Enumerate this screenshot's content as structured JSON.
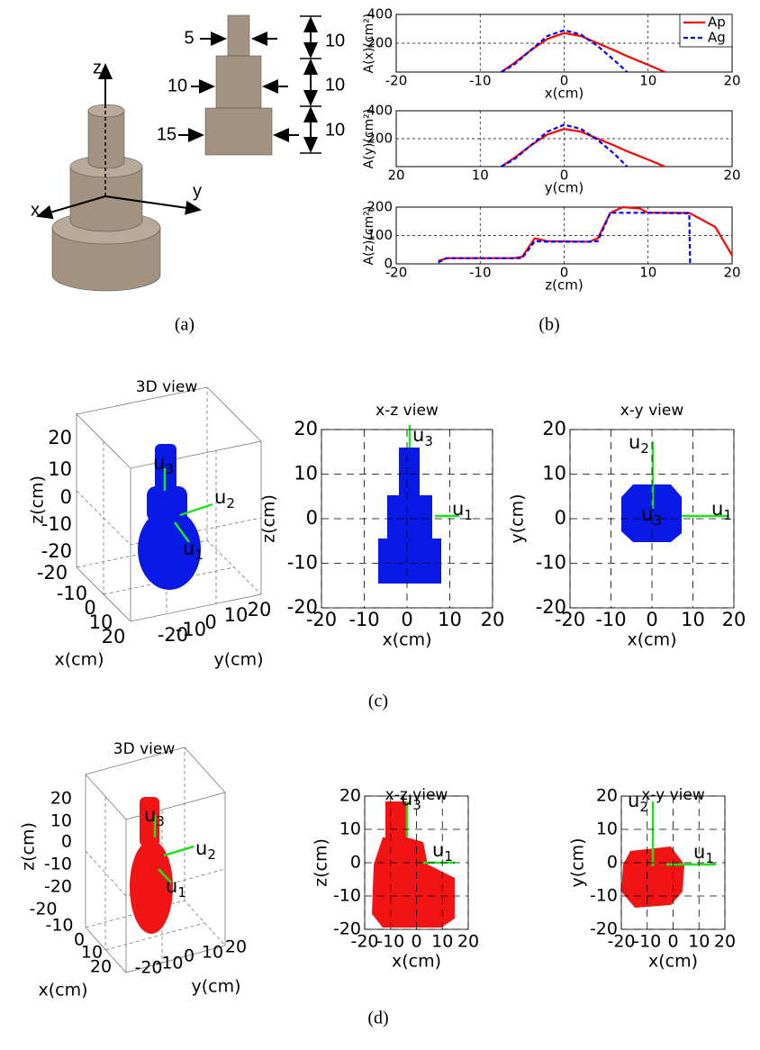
{
  "captions": [
    "(a)",
    "(b)",
    "(c)",
    "(d)"
  ],
  "panel_a": {
    "axes": [
      "z",
      "x",
      "y"
    ],
    "diameters": [
      "5",
      "10",
      "15"
    ],
    "heights": [
      "10",
      "10",
      "10"
    ]
  },
  "chart_data": [
    {
      "type": "line",
      "ylabel": "A(x)(cm²)",
      "xlabel": "x(cm)",
      "xlim": [
        -20,
        20
      ],
      "xticks": [
        -20,
        -10,
        0,
        10,
        20
      ],
      "ylim": [
        0,
        400
      ],
      "yticks": [
        200,
        400
      ],
      "grid": true,
      "legend": "upper right",
      "x": [
        -7.5,
        -6,
        -4,
        -2,
        0,
        2,
        4,
        6,
        7.5,
        10,
        12
      ],
      "series": [
        {
          "name": "Ap",
          "color": "#ff0000",
          "line_style": "solid",
          "values": [
            0,
            60,
            150,
            230,
            270,
            250,
            200,
            150,
            110,
            50,
            0
          ]
        },
        {
          "name": "Ag",
          "color": "#0000ff",
          "line_style": "dashed",
          "values": [
            0,
            50,
            150,
            250,
            290,
            260,
            180,
            80,
            0,
            null,
            null
          ]
        }
      ]
    },
    {
      "type": "line",
      "ylabel": "A(y)(cm²)",
      "xlabel": "y(cm)",
      "xlim": [
        -20,
        20
      ],
      "xticks": [
        {
          "value": -20,
          "label": "20"
        },
        {
          "value": -10,
          "label": "10"
        },
        0,
        20
      ],
      "ylim": [
        0,
        400
      ],
      "yticks": [
        200,
        400
      ],
      "grid": true,
      "x": [
        -7.5,
        -6,
        -4,
        -2,
        0,
        2,
        4,
        6,
        7.5,
        10,
        12
      ],
      "series": [
        {
          "name": "Ap",
          "color": "#ff0000",
          "line_style": "solid",
          "values": [
            0,
            60,
            150,
            230,
            270,
            250,
            200,
            150,
            110,
            50,
            0
          ]
        },
        {
          "name": "Ag",
          "color": "#0000ff",
          "line_style": "dashed",
          "values": [
            0,
            50,
            150,
            250,
            300,
            270,
            190,
            90,
            0,
            null,
            null
          ]
        }
      ]
    },
    {
      "type": "line",
      "ylabel": "A(z)(cm²)",
      "xlabel": "z(cm)",
      "xlim": [
        -20,
        20
      ],
      "xticks": [
        -20,
        -10,
        0,
        10,
        20
      ],
      "ylim": [
        0,
        200
      ],
      "yticks": [
        0,
        100,
        200
      ],
      "grid": true,
      "x": [
        -15,
        -14,
        -6,
        -5,
        -3.5,
        -2,
        3,
        4,
        5.5,
        7,
        9,
        10,
        14.9,
        15,
        18,
        20
      ],
      "series": [
        {
          "name": "Ap",
          "color": "#ff0000",
          "line_style": "solid",
          "values": [
            10,
            20,
            20,
            25,
            90,
            80,
            78,
            90,
            180,
            200,
            195,
            180,
            180,
            178,
            130,
            30
          ]
        },
        {
          "name": "Ag",
          "color": "#0000ff",
          "line_style": "dashed",
          "values": [
            5,
            20,
            20,
            20,
            80,
            78,
            78,
            80,
            180,
            180,
            180,
            180,
            178,
            0,
            null,
            null
          ]
        }
      ]
    }
  ],
  "views": {
    "c": [
      {
        "title": "3D view",
        "xlabel": "x(cm)",
        "ylabel": "y(cm)",
        "zlabel": "z(cm)",
        "xticks": [
          -20,
          -10,
          0,
          10,
          20
        ],
        "yticks": [
          -20,
          -10,
          0,
          10,
          20
        ],
        "zticks": [
          -20,
          -10,
          0,
          10,
          20
        ],
        "vectors": [
          {
            "symbol": "u",
            "index": "1"
          },
          {
            "symbol": "u",
            "index": "2"
          },
          {
            "symbol": "u",
            "index": "3"
          }
        ]
      },
      {
        "title": "x-z view",
        "xlabel": "x(cm)",
        "ylabel": "z(cm)",
        "xlim": [
          -20,
          20
        ],
        "ylim": [
          -20,
          20
        ],
        "xticks": [
          -20,
          -10,
          0,
          10,
          20
        ],
        "yticks": [
          -20,
          -10,
          0,
          10,
          20
        ],
        "grid": true,
        "vectors": [
          {
            "symbol": "u",
            "index": "1"
          },
          {
            "symbol": "u",
            "index": "3"
          }
        ]
      },
      {
        "title": "x-y view",
        "xlabel": "x(cm)",
        "ylabel": "y(cm)",
        "xlim": [
          -20,
          20
        ],
        "ylim": [
          -20,
          20
        ],
        "xticks": [
          -20,
          -10,
          0,
          10,
          20
        ],
        "yticks": [
          -20,
          -10,
          0,
          10,
          20
        ],
        "grid": true,
        "vectors": [
          {
            "symbol": "u",
            "index": "1"
          },
          {
            "symbol": "u",
            "index": "2"
          },
          {
            "symbol": "u",
            "index": "3"
          }
        ]
      }
    ],
    "d": [
      {
        "title": "3D view",
        "xlabel": "x(cm)",
        "ylabel": "y(cm)",
        "zlabel": "z(cm)",
        "xticks": [
          -20,
          -10,
          0,
          10,
          20
        ],
        "yticks": [
          -20,
          -10,
          0,
          10,
          20
        ],
        "zticks": [
          -20,
          -10,
          0,
          10,
          20
        ],
        "vectors": [
          {
            "symbol": "u",
            "index": "1"
          },
          {
            "symbol": "u",
            "index": "2"
          },
          {
            "symbol": "u",
            "index": "3"
          }
        ]
      },
      {
        "title": "x-z view",
        "xlabel": "x(cm)",
        "ylabel": "z(cm)",
        "xlim": [
          -20,
          20
        ],
        "ylim": [
          -20,
          20
        ],
        "xticks": [
          -20,
          -10,
          0,
          10,
          20
        ],
        "yticks": [
          -20,
          -10,
          0,
          10,
          20
        ],
        "grid": true,
        "vectors": [
          {
            "symbol": "u",
            "index": "1"
          },
          {
            "symbol": "u",
            "index": "3"
          }
        ]
      },
      {
        "title": "x-y view",
        "xlabel": "x(cm)",
        "ylabel": "y(cm)",
        "xlim": [
          -20,
          20
        ],
        "ylim": [
          -20,
          20
        ],
        "xticks": [
          -20,
          -10,
          0,
          10,
          20
        ],
        "yticks": [
          -20,
          -10,
          0,
          10,
          20
        ],
        "grid": true,
        "vectors": [
          {
            "symbol": "u",
            "index": "1"
          },
          {
            "symbol": "u",
            "index": "2"
          }
        ]
      }
    ]
  }
}
